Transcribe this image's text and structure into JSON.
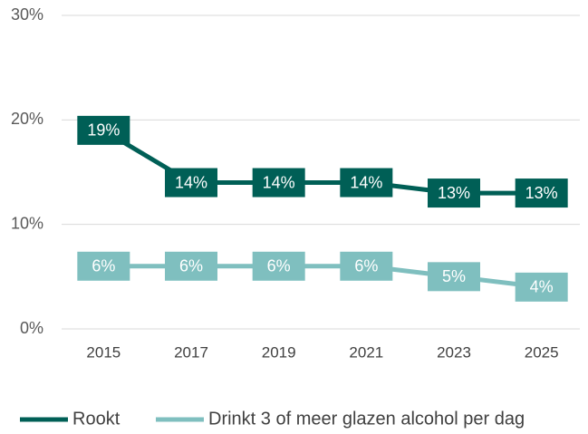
{
  "chart_data": {
    "type": "line",
    "categories": [
      "2015",
      "2017",
      "2019",
      "2021",
      "2023",
      "2025"
    ],
    "series": [
      {
        "name": "Rookt",
        "color": "#005f56",
        "values": [
          19,
          14,
          14,
          14,
          13,
          13
        ],
        "value_labels": [
          "19%",
          "14%",
          "14%",
          "14%",
          "13%",
          "13%"
        ]
      },
      {
        "name": "Drinkt 3 of meer glazen alcohol per dag",
        "color": "#7fbfbf",
        "values": [
          6,
          6,
          6,
          6,
          5,
          4
        ],
        "value_labels": [
          "6%",
          "6%",
          "6%",
          "6%",
          "5%",
          "4%"
        ]
      }
    ],
    "ylim": [
      0,
      30
    ],
    "yticks": [
      {
        "value": 0,
        "label": "0%"
      },
      {
        "value": 10,
        "label": "10%"
      },
      {
        "value": 20,
        "label": "20%"
      },
      {
        "value": 30,
        "label": "30%"
      }
    ],
    "grid": true,
    "legend": "bottom"
  }
}
